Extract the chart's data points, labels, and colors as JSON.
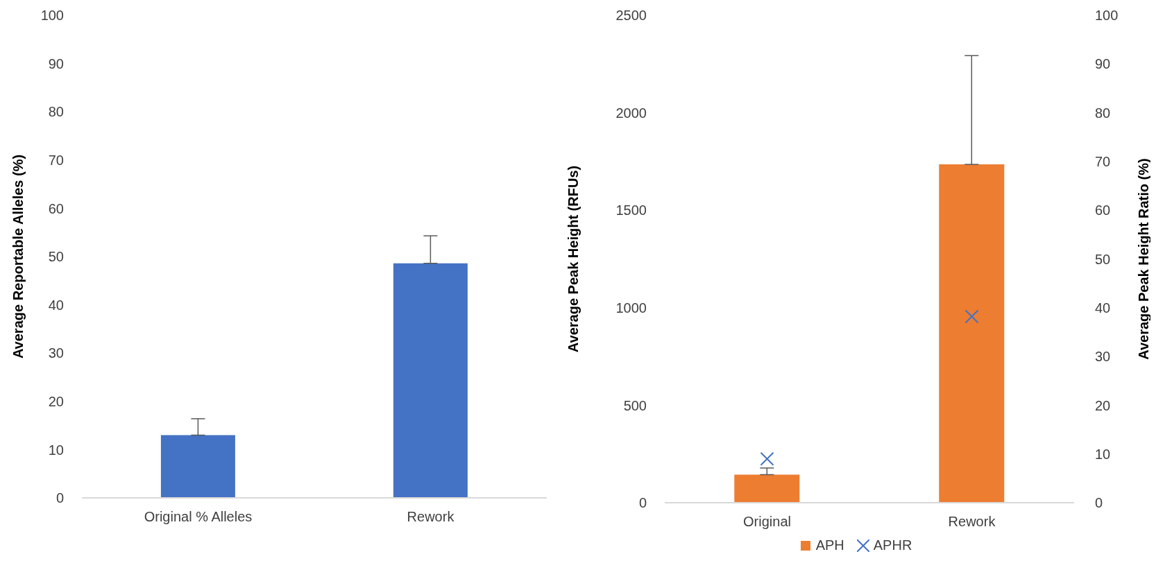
{
  "chart_data": [
    {
      "type": "bar",
      "categories": [
        "Original % Alleles",
        "Rework"
      ],
      "values": [
        13.0,
        48.6
      ],
      "color": "#4472c4",
      "errors": [
        [
          13.0,
          16.4
        ],
        [
          48.6,
          54.3
        ]
      ],
      "ylabel": "Average Reportable Alleles (%)",
      "ylim": [
        0,
        100
      ],
      "yticks": [
        0,
        10,
        20,
        30,
        40,
        50,
        60,
        70,
        80,
        90,
        100
      ]
    },
    {
      "type": "bar",
      "categories": [
        "Original",
        "Rework"
      ],
      "ylabel": "Average Peak Height (RFUs)",
      "y2label": "Average Peak Height Ratio (%)",
      "ylim": [
        0,
        2500
      ],
      "yticks": [
        0,
        500,
        1000,
        1500,
        2000,
        2500
      ],
      "y2lim": [
        0,
        100
      ],
      "y2ticks": [
        0,
        10,
        20,
        30,
        40,
        50,
        60,
        70,
        80,
        90,
        100
      ],
      "legend": "bottom",
      "series": [
        {
          "name": "APH",
          "color": "#ed7d31",
          "values": [
            144,
            1735
          ],
          "errors": [
            [
              144,
              178
            ],
            [
              1735,
              2293
            ]
          ]
        },
        {
          "name": "APHR",
          "type": "scatter",
          "axis": "y2",
          "marker": "cross",
          "color": "#4472c4",
          "values": [
            9.0,
            38.2
          ]
        }
      ]
    }
  ]
}
